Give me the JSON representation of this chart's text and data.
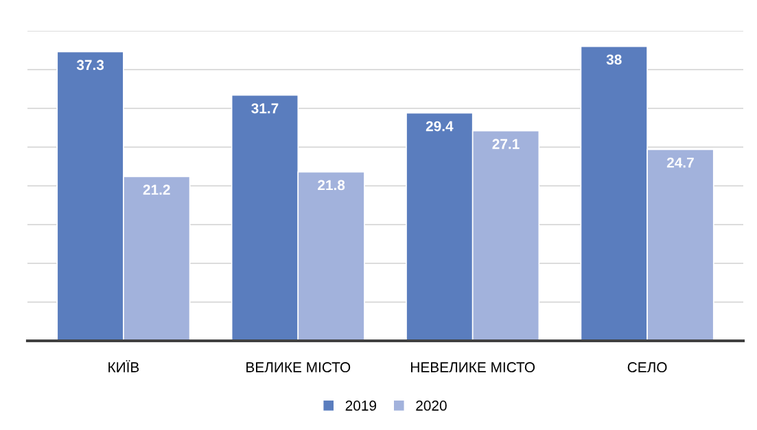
{
  "chart_data": {
    "type": "bar",
    "categories": [
      "КИЇВ",
      "ВЕЛИКЕ МІСТО",
      "НЕВЕЛИКЕ МІСТО",
      "СЕЛО"
    ],
    "series": [
      {
        "name": "2019",
        "color": "#5a7dbe",
        "values": [
          37.3,
          31.7,
          29.4,
          38
        ]
      },
      {
        "name": "2020",
        "color": "#a2b2dc",
        "values": [
          21.2,
          21.8,
          27.1,
          24.7
        ]
      }
    ],
    "ylim": [
      0,
      40
    ],
    "yticks": [
      {
        "value": 0,
        "label": null
      },
      {
        "value": 5,
        "label": null
      },
      {
        "value": 10,
        "label": null
      },
      {
        "value": 15,
        "label": null
      },
      {
        "value": 20,
        "label": null
      },
      {
        "value": 25,
        "label": null
      },
      {
        "value": 30,
        "label": null
      },
      {
        "value": 35,
        "label": null
      },
      {
        "value": 40,
        "label": null
      }
    ],
    "tick_labels": "x",
    "grid": "y",
    "legend": "bottom",
    "data_labels": true
  }
}
